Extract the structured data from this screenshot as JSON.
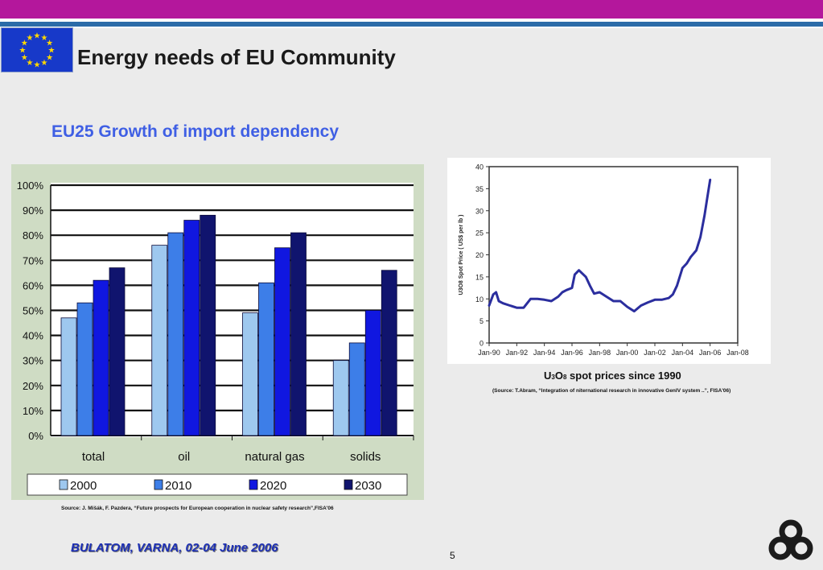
{
  "header": {
    "title": "Energy needs of EU Community",
    "subtitle": "EU25  Growth of import dependency"
  },
  "colors": {
    "top_bar": "#b4179c",
    "accent_line": "#2b6ba8",
    "flag": "#1739c9",
    "star": "#ffd700",
    "subtitle": "#3f5fe4",
    "footer": "#1c2fb5"
  },
  "icons": {
    "flag": "eu-flag-icon",
    "logo": "company-logo-icon"
  },
  "chart_data": [
    {
      "type": "bar",
      "categories": [
        "total",
        "oil",
        "natural gas",
        "solids"
      ],
      "series": [
        {
          "name": "2000",
          "color": "#9ec8ef",
          "values": [
            47,
            76,
            49,
            30
          ]
        },
        {
          "name": "2010",
          "color": "#3d7ee8",
          "values": [
            53,
            81,
            61,
            37
          ]
        },
        {
          "name": "2020",
          "color": "#1017e0",
          "values": [
            62,
            86,
            75,
            50
          ]
        },
        {
          "name": "2030",
          "color": "#10146e",
          "values": [
            67,
            88,
            81,
            66
          ]
        }
      ],
      "ylim": [
        0,
        100
      ],
      "ytick_labels": [
        "0%",
        "10%",
        "20%",
        "30%",
        "40%",
        "50%",
        "60%",
        "70%",
        "80%",
        "90%",
        "100%"
      ],
      "grid": true,
      "legend": "bottom",
      "source": "Source: J. Mišák, F. Pazdera, “Future prospects for European cooperation in nuclear safety research”,FISA'06"
    },
    {
      "type": "line",
      "ylabel": "U3O8 Spot Price ( US$ per lb )",
      "ylim": [
        0,
        40
      ],
      "xlim": [
        1990,
        2008
      ],
      "ytick_labels": [
        "0",
        "5",
        "10",
        "15",
        "20",
        "25",
        "30",
        "35",
        "40"
      ],
      "xtick_labels": [
        "Jan-90",
        "Jan-92",
        "Jan-94",
        "Jan-96",
        "Jan-98",
        "Jan-00",
        "Jan-02",
        "Jan-04",
        "Jan-06",
        "Jan-08"
      ],
      "series": [
        {
          "color": "#2b2e9e",
          "x": [
            1990.0,
            1990.3,
            1990.5,
            1990.7,
            1991.0,
            1991.5,
            1992.0,
            1992.5,
            1993.0,
            1993.5,
            1994.0,
            1994.5,
            1995.0,
            1995.3,
            1995.6,
            1996.0,
            1996.2,
            1996.5,
            1997.0,
            1997.3,
            1997.6,
            1998.0,
            1998.5,
            1999.0,
            1999.5,
            2000.0,
            2000.5,
            2001.0,
            2001.5,
            2002.0,
            2002.5,
            2003.0,
            2003.3,
            2003.6,
            2004.0,
            2004.3,
            2004.6,
            2005.0,
            2005.3,
            2005.6,
            2005.8,
            2006.0
          ],
          "y": [
            8.5,
            11,
            11.5,
            9.5,
            9,
            8.5,
            8,
            8,
            10,
            10,
            9.8,
            9.5,
            10.5,
            11.5,
            12,
            12.5,
            15.5,
            16.5,
            15,
            13,
            11.2,
            11.5,
            10.5,
            9.5,
            9.5,
            8.2,
            7.2,
            8.5,
            9.2,
            9.8,
            9.8,
            10.2,
            11,
            13,
            17,
            18,
            19.5,
            21,
            24,
            29,
            33,
            37
          ]
        }
      ]
    }
  ],
  "captions": {
    "u3o8_main": "U",
    "u3o8_sub1": "3",
    "u3o8_mid": "O",
    "u3o8_sub2": "8",
    "u3o8_rest": " spot prices since 1990",
    "source2": "(Source: T.Abram, “Integration of niternational research in innovative GenIV system ..”, FISA'06)"
  },
  "footer": {
    "text": "BULATOM, VARNA, 02-04 June 2006",
    "page_number": "5"
  }
}
